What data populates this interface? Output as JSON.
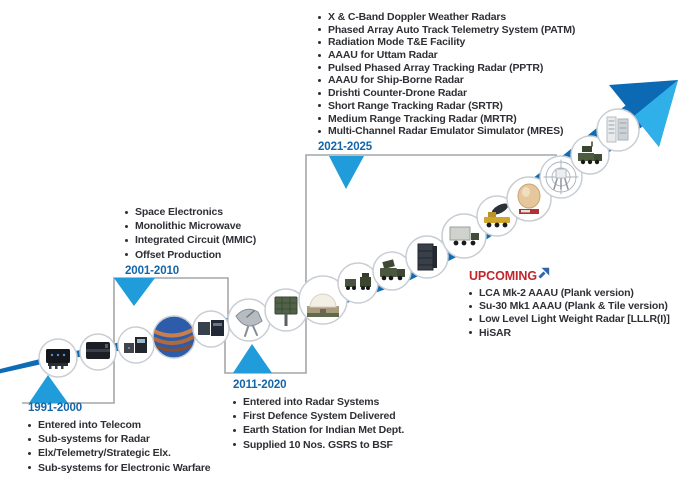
{
  "periods": {
    "p1991": {
      "label": "1991-2000",
      "items": [
        "Entered into Telecom",
        "Sub-systems for Radar",
        "Elx/Telemetry/Strategic Elx.",
        "Sub-systems for Electronic Warfare"
      ]
    },
    "p2001": {
      "label": "2001-2010",
      "items": [
        "Space Electronics",
        "Monolithic Microwave",
        "Integrated Circuit (MMIC)",
        "Offset Production"
      ]
    },
    "p2011": {
      "label": "2011-2020",
      "items": [
        "Entered into Radar Systems",
        "First Defence System Delivered",
        "Earth Station for Indian Met Dept.",
        "Supplied 10 Nos. GSRS to BSF"
      ]
    },
    "p2021": {
      "label": "2021-2025",
      "items": [
        "X & C-Band Doppler Weather Radars",
        "Phased Array Auto Track Telemetry System (PATM)",
        "Radiation Mode T&E Facility",
        "AAAU for Uttam Radar",
        "Pulsed Phased Array Tracking Radar (PPTR)",
        "AAAU for Ship-Borne Radar",
        "Drishti Counter-Drone Radar",
        "Short Range Tracking Radar (SRTR)",
        "Medium Range Tracking Radar (MRTR)",
        "Multi-Channel Radar Emulator Simulator (MRES)"
      ]
    }
  },
  "upcoming": {
    "label": "UPCOMING",
    "arrow_icon": "up-right-arrow-icon",
    "items": [
      "LCA Mk-2 AAAU (Plank version)",
      "Su-30 Mk1 AAAU (Plank & Tile version)",
      "Low Level Light Weight Radar [LLLR(I)]",
      "HiSAR"
    ]
  },
  "timeline": {
    "milestone_icons": [
      "telemetry-unit-icon",
      "rf-module-icon",
      "test-instruments-icon",
      "antenna-ball-icon",
      "transmitter-boxes-icon",
      "satellite-dish-icon",
      "planar-antenna-icon",
      "radome-icon",
      "radar-convoy-icon",
      "radar-truck-icon",
      "antenna-array-icon",
      "shelter-truck-icon",
      "crane-radar-icon",
      "aerostat-radome-icon",
      "tracking-antenna-icon",
      "mobile-radar-icon",
      "emulator-racks-icon"
    ]
  },
  "colors": {
    "band_blue": "#0e6cb5",
    "arrowhead_dark": "#0c6ab4",
    "arrowhead_light": "#2fb0e8",
    "triangle_blue": "#1f9cd9",
    "year_label_blue": "#1465a9",
    "text_dark": "#2f3036",
    "upcoming_red": "#c0272d",
    "connector_gray": "#a4a7ab",
    "circle_border": "#c9ced4"
  }
}
